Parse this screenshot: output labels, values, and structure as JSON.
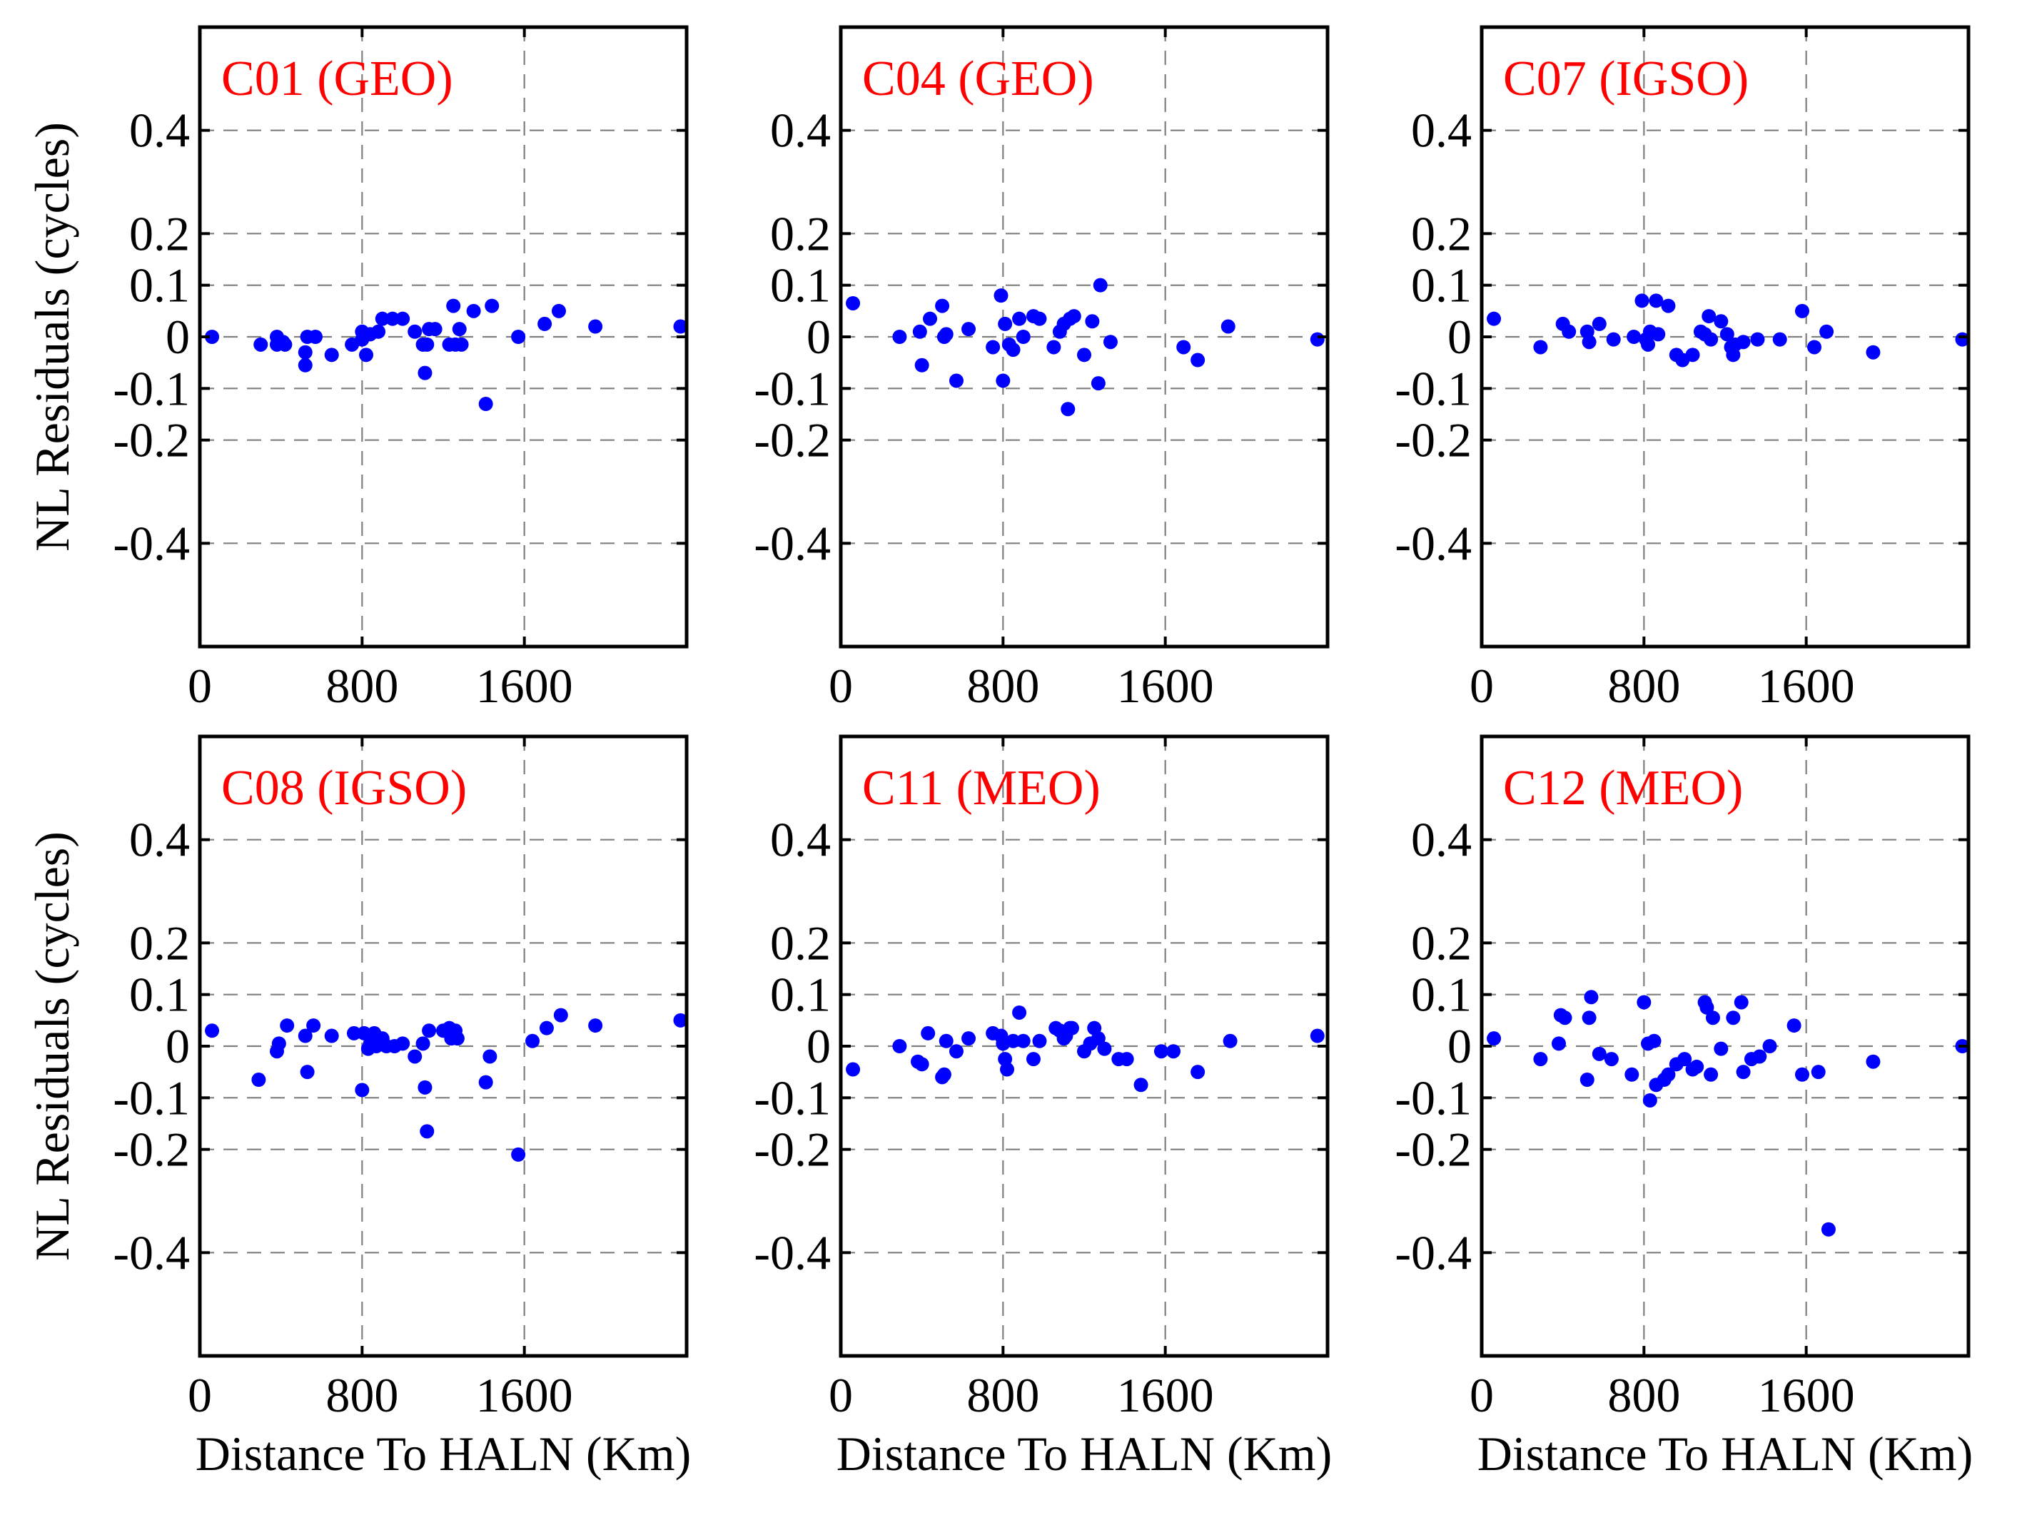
{
  "chart_data": [
    {
      "type": "scatter",
      "title": "C01 (GEO)",
      "ylabel": "NL Residuals (cycles)",
      "xlabel": "",
      "xlim": [
        0,
        2400
      ],
      "ylim": [
        -0.6,
        0.6
      ],
      "xticks": [
        0,
        800,
        1600
      ],
      "yticks": [
        0.4,
        0.2,
        0.1,
        0,
        -0.1,
        -0.2,
        -0.4
      ],
      "xtick_labels": [
        "0",
        "800",
        "1600"
      ],
      "ytick_labels": [
        "0.4",
        "0.2",
        "0.1",
        "0",
        "-0.1",
        "-0.2",
        "-0.4"
      ],
      "grid": true,
      "x": [
        60,
        300,
        380,
        380,
        410,
        420,
        520,
        520,
        530,
        570,
        650,
        750,
        800,
        800,
        820,
        840,
        880,
        900,
        950,
        1000,
        1060,
        1100,
        1110,
        1120,
        1130,
        1160,
        1230,
        1250,
        1260,
        1280,
        1290,
        1350,
        1410,
        1440,
        1570,
        1700,
        1770,
        1950,
        2370
      ],
      "y": [
        0.0,
        -0.015,
        -0.015,
        0.0,
        -0.01,
        -0.015,
        -0.03,
        -0.055,
        0.0,
        0.0,
        -0.035,
        -0.015,
        0.01,
        -0.005,
        -0.035,
        0.005,
        0.01,
        0.035,
        0.035,
        0.035,
        0.01,
        -0.015,
        -0.07,
        -0.015,
        0.015,
        0.015,
        -0.015,
        0.06,
        -0.015,
        0.015,
        -0.015,
        0.05,
        -0.13,
        0.06,
        0.0,
        0.025,
        0.05,
        0.02,
        0.02
      ]
    },
    {
      "type": "scatter",
      "title": "C04 (GEO)",
      "ylabel": "",
      "xlabel": "",
      "xlim": [
        0,
        2400
      ],
      "ylim": [
        -0.6,
        0.6
      ],
      "xticks": [
        0,
        800,
        1600
      ],
      "yticks": [
        0.4,
        0.2,
        0.1,
        0,
        -0.1,
        -0.2,
        -0.4
      ],
      "xtick_labels": [
        "0",
        "800",
        "1600"
      ],
      "ytick_labels": [
        "0.4",
        "0.2",
        "0.1",
        "0",
        "-0.1",
        "-0.2",
        "-0.4"
      ],
      "grid": true,
      "x": [
        60,
        290,
        390,
        400,
        440,
        500,
        510,
        520,
        570,
        630,
        750,
        790,
        800,
        810,
        830,
        850,
        880,
        900,
        950,
        980,
        1050,
        1080,
        1100,
        1120,
        1130,
        1150,
        1200,
        1240,
        1270,
        1280,
        1330,
        1690,
        1760,
        1910,
        2350
      ],
      "y": [
        0.065,
        0.0,
        0.01,
        -0.055,
        0.035,
        0.06,
        0.0,
        0.005,
        -0.085,
        0.015,
        -0.02,
        0.08,
        -0.085,
        0.025,
        -0.015,
        -0.025,
        0.035,
        0.0,
        0.04,
        0.035,
        -0.02,
        0.01,
        0.025,
        -0.14,
        0.035,
        0.04,
        -0.035,
        0.03,
        -0.09,
        0.1,
        -0.01,
        -0.02,
        -0.045,
        0.02,
        -0.005
      ]
    },
    {
      "type": "scatter",
      "title": "C07 (IGSO)",
      "ylabel": "",
      "xlabel": "",
      "xlim": [
        0,
        2400
      ],
      "ylim": [
        -0.6,
        0.6
      ],
      "xticks": [
        0,
        800,
        1600
      ],
      "yticks": [
        0.4,
        0.2,
        0.1,
        0,
        -0.1,
        -0.2,
        -0.4
      ],
      "xtick_labels": [
        "0",
        "800",
        "1600"
      ],
      "ytick_labels": [
        "0.4",
        "0.2",
        "0.1",
        "0",
        "-0.1",
        "-0.2",
        "-0.4"
      ],
      "grid": true,
      "x": [
        60,
        290,
        400,
        430,
        520,
        530,
        580,
        650,
        750,
        790,
        810,
        820,
        830,
        860,
        870,
        920,
        960,
        990,
        1040,
        1080,
        1100,
        1120,
        1130,
        1180,
        1210,
        1230,
        1240,
        1250,
        1290,
        1360,
        1470,
        1580,
        1640,
        1700,
        1930,
        2370
      ],
      "y": [
        0.035,
        -0.02,
        0.025,
        0.01,
        0.01,
        -0.01,
        0.025,
        -0.005,
        0.0,
        0.07,
        -0.005,
        -0.015,
        0.01,
        0.07,
        0.005,
        0.06,
        -0.035,
        -0.045,
        -0.035,
        0.01,
        0.005,
        0.04,
        -0.005,
        0.03,
        0.005,
        -0.02,
        -0.035,
        -0.015,
        -0.01,
        -0.005,
        -0.005,
        0.05,
        -0.02,
        0.01,
        -0.03,
        -0.005
      ]
    },
    {
      "type": "scatter",
      "title": "C08 (IGSO)",
      "ylabel": "NL Residuals (cycles)",
      "xlabel": "Distance To HALN (Km)",
      "xlim": [
        0,
        2400
      ],
      "ylim": [
        -0.6,
        0.6
      ],
      "xticks": [
        0,
        800,
        1600
      ],
      "yticks": [
        0.4,
        0.2,
        0.1,
        0,
        -0.1,
        -0.2,
        -0.4
      ],
      "xtick_labels": [
        "0",
        "800",
        "1600"
      ],
      "ytick_labels": [
        "0.4",
        "0.2",
        "0.1",
        "0",
        "-0.1",
        "-0.2",
        "-0.4"
      ],
      "grid": true,
      "x": [
        60,
        290,
        380,
        390,
        430,
        520,
        530,
        560,
        650,
        760,
        800,
        810,
        830,
        840,
        860,
        870,
        900,
        920,
        960,
        1000,
        1060,
        1100,
        1110,
        1120,
        1130,
        1200,
        1230,
        1240,
        1250,
        1260,
        1270,
        1410,
        1430,
        1570,
        1640,
        1710,
        1780,
        1950,
        2370
      ],
      "y": [
        0.03,
        -0.065,
        -0.01,
        0.005,
        0.04,
        0.02,
        -0.05,
        0.04,
        0.02,
        0.025,
        -0.085,
        0.025,
        -0.005,
        0.005,
        0.025,
        0.0,
        0.015,
        0.0,
        0.0,
        0.005,
        -0.02,
        0.005,
        -0.08,
        -0.165,
        0.03,
        0.03,
        0.035,
        0.015,
        0.025,
        0.03,
        0.015,
        -0.07,
        -0.02,
        -0.21,
        0.01,
        0.035,
        0.06,
        0.04,
        0.05
      ]
    },
    {
      "type": "scatter",
      "title": "C11 (MEO)",
      "ylabel": "",
      "xlabel": "Distance To HALN (Km)",
      "xlim": [
        0,
        2400
      ],
      "ylim": [
        -0.6,
        0.6
      ],
      "xticks": [
        0,
        800,
        1600
      ],
      "yticks": [
        0.4,
        0.2,
        0.1,
        0,
        -0.1,
        -0.2,
        -0.4
      ],
      "xtick_labels": [
        "0",
        "800",
        "1600"
      ],
      "ytick_labels": [
        "0.4",
        "0.2",
        "0.1",
        "0",
        "-0.1",
        "-0.2",
        "-0.4"
      ],
      "grid": true,
      "x": [
        60,
        290,
        380,
        400,
        430,
        500,
        510,
        520,
        570,
        630,
        750,
        790,
        800,
        810,
        820,
        850,
        880,
        900,
        950,
        980,
        1060,
        1080,
        1100,
        1110,
        1130,
        1140,
        1200,
        1230,
        1250,
        1270,
        1300,
        1370,
        1410,
        1480,
        1580,
        1640,
        1760,
        1920,
        2350
      ],
      "y": [
        -0.045,
        0.0,
        -0.03,
        -0.035,
        0.025,
        -0.06,
        -0.055,
        0.01,
        -0.01,
        0.015,
        0.025,
        0.02,
        0.005,
        -0.025,
        -0.045,
        0.01,
        0.065,
        0.01,
        -0.025,
        0.01,
        0.035,
        0.03,
        0.015,
        0.02,
        0.035,
        0.035,
        -0.01,
        0.005,
        0.035,
        0.015,
        -0.005,
        -0.025,
        -0.025,
        -0.075,
        -0.01,
        -0.01,
        -0.05,
        0.01,
        0.02
      ]
    },
    {
      "type": "scatter",
      "title": "C12 (MEO)",
      "ylabel": "",
      "xlabel": "Distance To HALN (Km)",
      "xlim": [
        0,
        2400
      ],
      "ylim": [
        -0.6,
        0.6
      ],
      "xticks": [
        0,
        800,
        1600
      ],
      "yticks": [
        0.4,
        0.2,
        0.1,
        0,
        -0.1,
        -0.2,
        -0.4
      ],
      "xtick_labels": [
        "0",
        "800",
        "1600"
      ],
      "ytick_labels": [
        "0.4",
        "0.2",
        "0.1",
        "0",
        "-0.1",
        "-0.2",
        "-0.4"
      ],
      "grid": true,
      "x": [
        60,
        290,
        380,
        390,
        410,
        520,
        530,
        540,
        580,
        640,
        740,
        800,
        820,
        830,
        850,
        860,
        900,
        920,
        960,
        1000,
        1040,
        1060,
        1100,
        1110,
        1130,
        1140,
        1180,
        1240,
        1280,
        1290,
        1330,
        1370,
        1420,
        1540,
        1580,
        1660,
        1710,
        1930,
        2370
      ],
      "y": [
        0.015,
        -0.025,
        0.005,
        0.06,
        0.055,
        -0.065,
        0.055,
        0.095,
        -0.015,
        -0.025,
        -0.055,
        0.085,
        0.005,
        -0.105,
        0.01,
        -0.075,
        -0.065,
        -0.055,
        -0.035,
        -0.025,
        -0.045,
        -0.04,
        0.085,
        0.075,
        -0.055,
        0.055,
        -0.005,
        0.055,
        0.085,
        -0.05,
        -0.025,
        -0.02,
        0.0,
        0.04,
        -0.055,
        -0.05,
        -0.355,
        -0.03,
        0.0
      ]
    }
  ],
  "style": {
    "marker_color": "#0000ff",
    "title_color": "#ff0000",
    "grid_color": "#7f7f7f",
    "axis_color": "#000000"
  }
}
